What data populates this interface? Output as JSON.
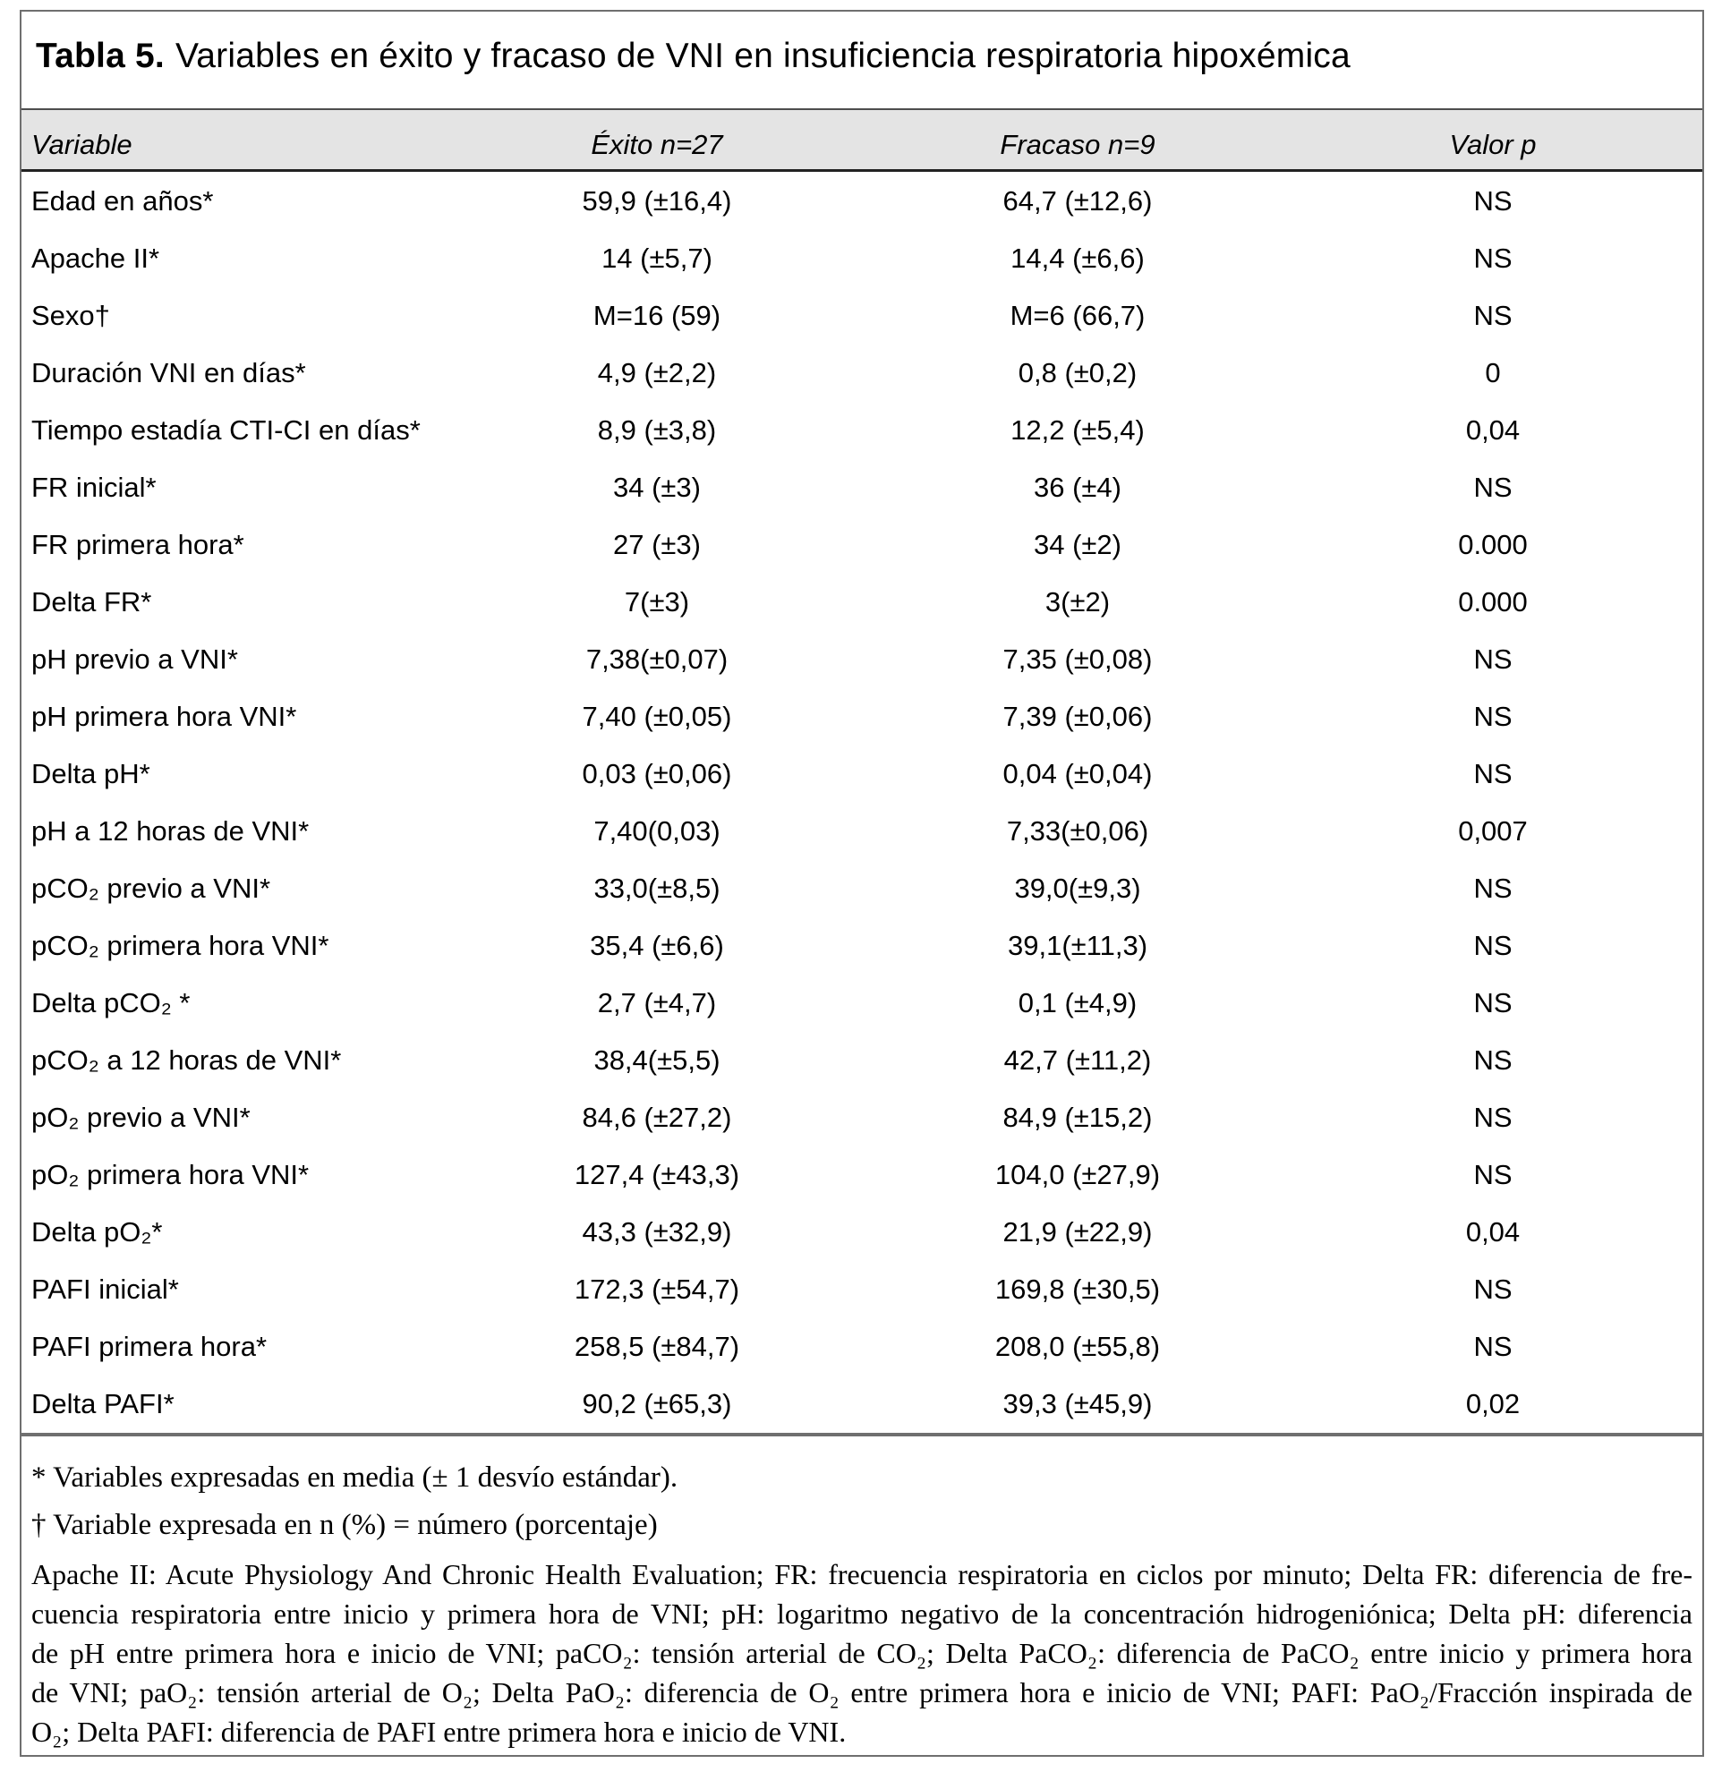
{
  "title": {
    "label": "Tabla 5.",
    "text": "Variables en éxito y fracaso de VNI en insuficiencia respiratoria hipoxémica"
  },
  "table": {
    "columns": [
      "Variable",
      "Éxito n=27",
      "Fracaso n=9",
      "Valor p"
    ],
    "rows": [
      {
        "variable": "Edad en años*",
        "exito": "59,9 (±16,4)",
        "fracaso": "64,7 (±12,6)",
        "valor_p": "NS"
      },
      {
        "variable": "Apache II*",
        "exito": "14 (±5,7)",
        "fracaso": "14,4 (±6,6)",
        "valor_p": "NS"
      },
      {
        "variable": "Sexo†",
        "exito": "M=16 (59)",
        "fracaso": "M=6 (66,7)",
        "valor_p": "NS"
      },
      {
        "variable": "Duración VNI en días*",
        "exito": "4,9 (±2,2)",
        "fracaso": "0,8 (±0,2)",
        "valor_p": "0"
      },
      {
        "variable": "Tiempo estadía CTI-CI en días*",
        "exito": "8,9 (±3,8)",
        "fracaso": "12,2 (±5,4)",
        "valor_p": "0,04"
      },
      {
        "variable": "FR inicial*",
        "exito": "34 (±3)",
        "fracaso": "36 (±4)",
        "valor_p": "NS"
      },
      {
        "variable": "FR primera hora*",
        "exito": "27 (±3)",
        "fracaso": "34 (±2)",
        "valor_p": "0.000"
      },
      {
        "variable": "Delta FR*",
        "exito": "7(±3)",
        "fracaso": "3(±2)",
        "valor_p": "0.000"
      },
      {
        "variable": "pH previo a VNI*",
        "exito": "7,38(±0,07)",
        "fracaso": "7,35 (±0,08)",
        "valor_p": "NS"
      },
      {
        "variable": "pH primera hora VNI*",
        "exito": "7,40 (±0,05)",
        "fracaso": "7,39 (±0,06)",
        "valor_p": "NS"
      },
      {
        "variable": "Delta pH*",
        "exito": "0,03 (±0,06)",
        "fracaso": "0,04 (±0,04)",
        "valor_p": "NS"
      },
      {
        "variable": "pH a 12 horas de VNI*",
        "exito": "7,40(0,03)",
        "fracaso": "7,33(±0,06)",
        "valor_p": "0,007"
      },
      {
        "variable": "pCO₂ previo a VNI*",
        "exito": "33,0(±8,5)",
        "fracaso": "39,0(±9,3)",
        "valor_p": "NS"
      },
      {
        "variable": "pCO₂ primera hora VNI*",
        "exito": "35,4 (±6,6)",
        "fracaso": "39,1(±11,3)",
        "valor_p": "NS"
      },
      {
        "variable": "Delta pCO₂ *",
        "exito": "2,7 (±4,7)",
        "fracaso": "0,1 (±4,9)",
        "valor_p": "NS"
      },
      {
        "variable": "pCO₂ a 12 horas de VNI*",
        "exito": "38,4(±5,5)",
        "fracaso": "42,7 (±11,2)",
        "valor_p": "NS"
      },
      {
        "variable": "pO₂ previo a VNI*",
        "exito": "84,6 (±27,2)",
        "fracaso": "84,9 (±15,2)",
        "valor_p": "NS"
      },
      {
        "variable": "pO₂ primera hora VNI*",
        "exito": "127,4 (±43,3)",
        "fracaso": "104,0 (±27,9)",
        "valor_p": "NS"
      },
      {
        "variable": "Delta pO₂*",
        "exito": "43,3 (±32,9)",
        "fracaso": "21,9 (±22,9)",
        "valor_p": "0,04"
      },
      {
        "variable": "PAFI inicial*",
        "exito": "172,3 (±54,7)",
        "fracaso": "169,8 (±30,5)",
        "valor_p": "NS"
      },
      {
        "variable": "PAFI primera hora*",
        "exito": "258,5 (±84,7)",
        "fracaso": "208,0 (±55,8)",
        "valor_p": "NS"
      },
      {
        "variable": "Delta PAFI*",
        "exito": "90,2 (±65,3)",
        "fracaso": "39,3 (±45,9)",
        "valor_p": "0,02"
      }
    ]
  },
  "footnotes": {
    "star": "* Variables expresadas en media (± 1 desvío estándar).",
    "dagger": "† Variable expresada en n (%) = número (porcentaje)",
    "abbrev_lines": [
      "Apache II: Acute Physiology And Chronic Health Evaluation; FR: frecuencia respiratoria en ciclos por minuto; Delta FR: diferencia de fre-",
      "cuencia respiratoria entre inicio y primera hora de VNI; pH: logaritmo negativo de la concentración hidrogeniónica; Delta pH: diferencia",
      "de pH entre primera hora e inicio de VNI; paCO₂: tensión arterial de CO₂; Delta PaCO₂: diferencia de PaCO₂ entre inicio y primera hora",
      "de VNI; paO₂: tensión arterial de O₂; Delta PaO₂: diferencia de O₂ entre primera hora e inicio de VNI; PAFI: PaO₂/Fracción inspirada de",
      "O₂; Delta PAFI: diferencia de PAFI entre primera hora e inicio de VNI."
    ]
  },
  "colors": {
    "header_background": "#e4e4e4",
    "frame_border": "#6f6f6f",
    "text": "#000000"
  }
}
